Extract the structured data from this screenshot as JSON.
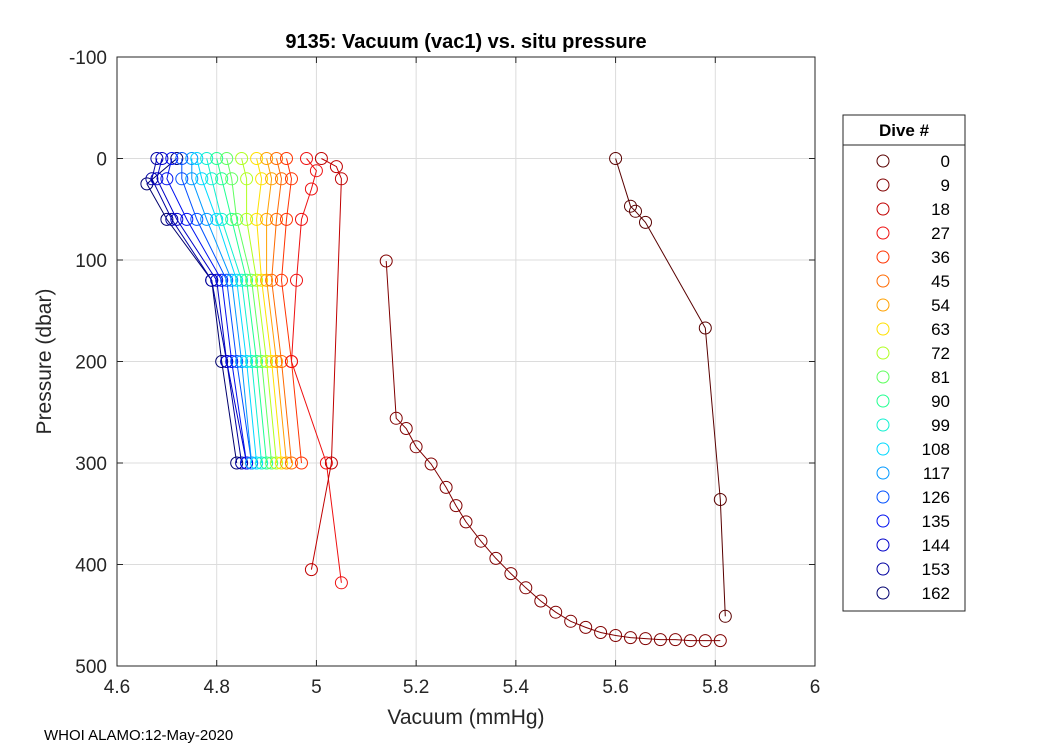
{
  "chart_data": {
    "type": "scatter",
    "title": "9135: Vacuum (vac1) vs. situ pressure",
    "xlabel": "Vacuum (mmHg)",
    "ylabel": "Pressure (dbar)",
    "xlim": [
      4.6,
      6
    ],
    "ylim": [
      -100,
      500
    ],
    "y_reversed": true,
    "grid": true,
    "xticks": [
      "4.6",
      "4.8",
      "5",
      "5.2",
      "5.4",
      "5.6",
      "5.8",
      "6"
    ],
    "yticks": [
      "-100",
      "0",
      "100",
      "200",
      "300",
      "400",
      "500"
    ],
    "legend_title": "Dive #",
    "legend_position": "right",
    "series": [
      {
        "name": "0",
        "color": "#590000",
        "x": [
          5.6,
          5.63,
          5.64,
          5.66,
          5.78,
          5.81,
          5.82
        ],
        "y": [
          0,
          47,
          52,
          63,
          167,
          336,
          451
        ]
      },
      {
        "name": "9",
        "color": "#800000",
        "x": [
          5.14,
          5.16,
          5.18,
          5.2,
          5.23,
          5.26,
          5.28,
          5.3,
          5.33,
          5.36,
          5.39,
          5.42,
          5.45,
          5.48,
          5.51,
          5.54,
          5.57,
          5.6,
          5.63,
          5.66,
          5.69,
          5.72,
          5.75,
          5.78,
          5.81
        ],
        "y": [
          101,
          256,
          266,
          284,
          301,
          324,
          342,
          358,
          377,
          394,
          409,
          423,
          436,
          447,
          456,
          462,
          467,
          470,
          472,
          473,
          474,
          474,
          475,
          475,
          475
        ]
      },
      {
        "name": "18",
        "color": "#c00000",
        "x": [
          5.01,
          5.04,
          5.05,
          5.03,
          4.99
        ],
        "y": [
          0,
          8,
          20,
          300,
          405
        ]
      },
      {
        "name": "27",
        "color": "#ee1010",
        "x": [
          4.98,
          5.0,
          4.99,
          4.97,
          4.96,
          4.95,
          5.02,
          5.05
        ],
        "y": [
          0,
          12,
          30,
          60,
          120,
          200,
          300,
          418
        ]
      },
      {
        "name": "36",
        "color": "#ff3300",
        "x": [
          4.94,
          4.95,
          4.94,
          4.93,
          4.95,
          4.97
        ],
        "y": [
          0,
          20,
          60,
          120,
          200,
          300
        ]
      },
      {
        "name": "45",
        "color": "#ff6a00",
        "x": [
          4.92,
          4.93,
          4.92,
          4.91,
          4.93,
          4.95
        ],
        "y": [
          0,
          20,
          60,
          120,
          200,
          300
        ]
      },
      {
        "name": "54",
        "color": "#ffa000",
        "x": [
          4.9,
          4.91,
          4.9,
          4.9,
          4.92,
          4.94
        ],
        "y": [
          0,
          20,
          60,
          120,
          200,
          300
        ]
      },
      {
        "name": "63",
        "color": "#ffe000",
        "x": [
          4.88,
          4.89,
          4.88,
          4.89,
          4.91,
          4.93
        ],
        "y": [
          0,
          20,
          60,
          120,
          200,
          300
        ]
      },
      {
        "name": "72",
        "color": "#b0ff20",
        "x": [
          4.85,
          4.86,
          4.86,
          4.88,
          4.9,
          4.92
        ],
        "y": [
          0,
          20,
          60,
          120,
          200,
          300
        ]
      },
      {
        "name": "81",
        "color": "#60ff60",
        "x": [
          4.82,
          4.83,
          4.84,
          4.87,
          4.89,
          4.91
        ],
        "y": [
          0,
          20,
          60,
          120,
          200,
          300
        ]
      },
      {
        "name": "90",
        "color": "#20ff90",
        "x": [
          4.8,
          4.81,
          4.83,
          4.86,
          4.88,
          4.9
        ],
        "y": [
          0,
          20,
          60,
          120,
          200,
          300
        ]
      },
      {
        "name": "99",
        "color": "#10f0d0",
        "x": [
          4.78,
          4.79,
          4.81,
          4.85,
          4.87,
          4.89
        ],
        "y": [
          0,
          20,
          60,
          120,
          200,
          300
        ]
      },
      {
        "name": "108",
        "color": "#00d8ff",
        "x": [
          4.76,
          4.77,
          4.8,
          4.84,
          4.86,
          4.88
        ],
        "y": [
          0,
          20,
          60,
          120,
          200,
          300
        ]
      },
      {
        "name": "117",
        "color": "#0098ff",
        "x": [
          4.75,
          4.75,
          4.78,
          4.83,
          4.85,
          4.87
        ],
        "y": [
          0,
          20,
          60,
          120,
          200,
          300
        ]
      },
      {
        "name": "126",
        "color": "#0050ff",
        "x": [
          4.73,
          4.73,
          4.76,
          4.82,
          4.84,
          4.87
        ],
        "y": [
          0,
          20,
          60,
          120,
          200,
          300
        ]
      },
      {
        "name": "135",
        "color": "#0010f0",
        "x": [
          4.71,
          4.7,
          4.74,
          4.81,
          4.83,
          4.86
        ],
        "y": [
          0,
          20,
          60,
          120,
          200,
          300
        ]
      },
      {
        "name": "144",
        "color": "#0000c8",
        "x": [
          4.69,
          4.68,
          4.72,
          4.8,
          4.82,
          4.86
        ],
        "y": [
          0,
          20,
          60,
          120,
          200,
          300
        ]
      },
      {
        "name": "153",
        "color": "#0000a0",
        "x": [
          4.68,
          4.67,
          4.71,
          4.79,
          4.82,
          4.85
        ],
        "y": [
          0,
          20,
          60,
          120,
          200,
          300
        ]
      },
      {
        "name": "162",
        "color": "#00006e",
        "x": [
          4.72,
          4.66,
          4.7,
          4.79,
          4.81,
          4.84
        ],
        "y": [
          0,
          25,
          60,
          120,
          200,
          300
        ]
      }
    ]
  },
  "footer": "WHOI ALAMO:12-May-2020"
}
